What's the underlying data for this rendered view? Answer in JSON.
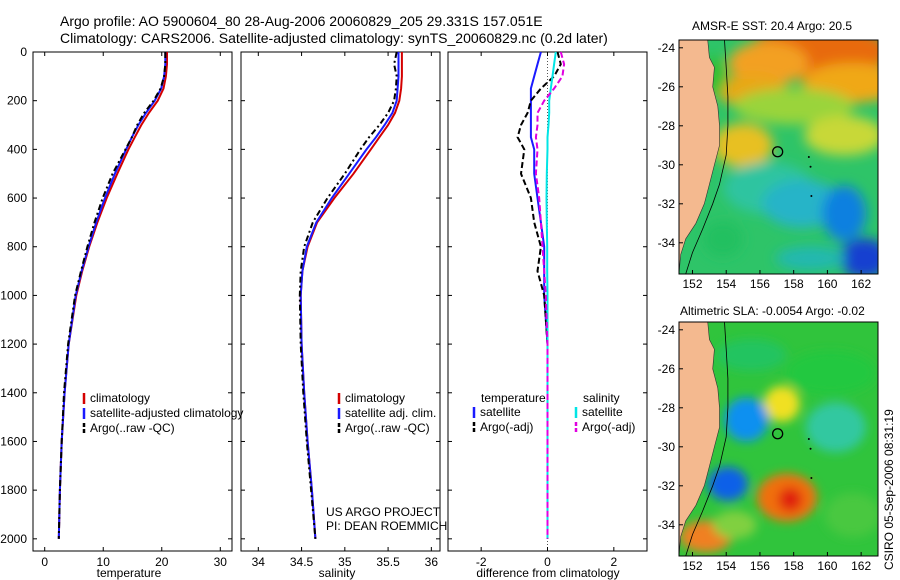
{
  "title": {
    "line1": "Argo profile: AO 5900604_80 28-Aug-2006 20060829_205 29.331S 157.051E",
    "line2": "Climatology: CARS2006. Satellite-adjusted climatology: synTS_20060829.nc (0.2d later)"
  },
  "footer": {
    "project": "US ARGO PROJECT",
    "pi": "PI: DEAN ROEMMICH",
    "stamp": "CSIRO 05-Sep-2006 08:31:19"
  },
  "colors": {
    "climatology": "#d40000",
    "satellite": "#1a1aff",
    "argo": "#000000",
    "salinity_sat": "#00e5e5",
    "salinity_argo": "#e000e0",
    "land": "#f4b98f"
  },
  "chart_data": [
    {
      "id": "temperature",
      "type": "line",
      "xlabel": "temperature",
      "xlim": [
        -2,
        32
      ],
      "xticks": [
        0,
        10,
        20,
        30
      ],
      "ylim": [
        2050,
        0
      ],
      "yticks": [
        0,
        200,
        400,
        600,
        800,
        1000,
        1200,
        1400,
        1600,
        1800,
        2000
      ],
      "legend": [
        "climatology",
        "satellite-adjusted climatology",
        "Argo(..raw -QC)"
      ],
      "depth": [
        0,
        50,
        100,
        150,
        200,
        250,
        300,
        350,
        400,
        500,
        600,
        700,
        800,
        900,
        1000,
        1200,
        1400,
        1600,
        1800,
        2000
      ],
      "series": [
        {
          "name": "climatology",
          "color": "#d40000",
          "dash": "",
          "values": [
            20.9,
            20.9,
            20.7,
            20.3,
            19.3,
            17.8,
            16.5,
            15.4,
            14.3,
            12.4,
            10.6,
            9.0,
            7.6,
            6.4,
            5.4,
            4.1,
            3.4,
            2.9,
            2.6,
            2.4
          ]
        },
        {
          "name": "satellite-adjusted climatology",
          "color": "#1a1aff",
          "dash": "",
          "values": [
            20.6,
            20.6,
            20.4,
            19.9,
            18.8,
            17.3,
            16.0,
            14.9,
            13.9,
            12.0,
            10.3,
            8.8,
            7.5,
            6.3,
            5.3,
            4.1,
            3.4,
            2.9,
            2.6,
            2.4
          ]
        },
        {
          "name": "Argo(..raw -QC)",
          "color": "#000000",
          "dash": "6 3 2 3",
          "values": [
            20.6,
            20.6,
            20.4,
            19.8,
            18.6,
            17.0,
            15.8,
            14.9,
            13.8,
            11.6,
            9.9,
            8.5,
            7.3,
            6.2,
            5.2,
            4.0,
            3.3,
            2.9,
            2.6,
            2.4
          ]
        }
      ]
    },
    {
      "id": "salinity",
      "type": "line",
      "xlabel": "salinity",
      "xlim": [
        33.8,
        36.1
      ],
      "xticks": [
        34,
        34.5,
        35,
        35.5,
        36
      ],
      "xtick_labels": [
        "34",
        "34.5",
        "35",
        "35.5",
        "36"
      ],
      "ylim": [
        2050,
        0
      ],
      "legend": [
        "climatology",
        "satellite adj. clim.",
        "Argo(..raw -QC)"
      ],
      "depth": [
        0,
        50,
        100,
        150,
        200,
        250,
        300,
        350,
        400,
        500,
        600,
        700,
        800,
        900,
        1000,
        1200,
        1400,
        1600,
        1800,
        2000
      ],
      "series": [
        {
          "name": "climatology",
          "color": "#d40000",
          "dash": "",
          "values": [
            35.66,
            35.66,
            35.66,
            35.65,
            35.63,
            35.58,
            35.5,
            35.4,
            35.3,
            35.1,
            34.88,
            34.68,
            34.57,
            34.51,
            34.49,
            34.5,
            34.53,
            34.57,
            34.62,
            34.66
          ]
        },
        {
          "name": "satellite adj. clim.",
          "color": "#1a1aff",
          "dash": "",
          "values": [
            35.62,
            35.62,
            35.62,
            35.61,
            35.6,
            35.55,
            35.46,
            35.36,
            35.25,
            35.05,
            34.85,
            34.67,
            34.56,
            34.51,
            34.49,
            34.5,
            34.53,
            34.57,
            34.62,
            34.66
          ]
        },
        {
          "name": "Argo(..raw -QC)",
          "color": "#000000",
          "dash": "6 3 2 3",
          "values": [
            35.6,
            35.57,
            35.6,
            35.59,
            35.57,
            35.5,
            35.4,
            35.28,
            35.18,
            35.0,
            34.8,
            34.63,
            34.53,
            34.49,
            34.48,
            34.49,
            34.52,
            34.56,
            34.61,
            34.66
          ]
        }
      ]
    },
    {
      "id": "difference",
      "type": "line",
      "xlabel": "difference from climatology",
      "xlim": [
        -3,
        3
      ],
      "xticks": [
        -2,
        0,
        2
      ],
      "ylim": [
        2050,
        0
      ],
      "legend_headers": [
        "temperature",
        "salinity"
      ],
      "legend": [
        "satellite",
        "Argo(-adj)",
        "satellite",
        "Argo(-adj)"
      ],
      "depth": [
        0,
        50,
        100,
        150,
        200,
        250,
        300,
        350,
        400,
        500,
        600,
        700,
        800,
        900,
        1000,
        1200,
        1400,
        1600,
        1800,
        2000
      ],
      "series": [
        {
          "name": "temperature satellite",
          "color": "#1a1aff",
          "dash": "",
          "values": [
            -0.2,
            -0.3,
            -0.4,
            -0.5,
            -0.5,
            -0.5,
            -0.5,
            -0.5,
            -0.4,
            -0.4,
            -0.3,
            -0.2,
            -0.1,
            -0.1,
            -0.1,
            0.0,
            0.0,
            0.0,
            0.0,
            0.0
          ]
        },
        {
          "name": "temperature Argo(-adj)",
          "color": "#000000",
          "dash": "6 3",
          "values": [
            0.3,
            0.4,
            0.2,
            -0.2,
            -0.5,
            -0.6,
            -0.8,
            -0.9,
            -0.7,
            -0.8,
            -0.5,
            -0.4,
            -0.2,
            -0.3,
            -0.1,
            0.0,
            0.0,
            0.0,
            0.0,
            0.0
          ]
        },
        {
          "name": "salinity satellite",
          "color": "#00e5e5",
          "dash": "",
          "values": [
            0.25,
            0.2,
            0.15,
            0.1,
            0.05,
            0.05,
            0.03,
            0.0,
            0.0,
            -0.02,
            -0.03,
            -0.02,
            -0.01,
            -0.01,
            0.0,
            0.0,
            0.0,
            0.0,
            0.0,
            0.0
          ]
        },
        {
          "name": "salinity Argo(-adj)",
          "color": "#e000e0",
          "dash": "6 3",
          "values": [
            0.4,
            0.5,
            0.45,
            0.2,
            -0.1,
            -0.3,
            -0.3,
            -0.35,
            -0.3,
            -0.35,
            -0.25,
            -0.2,
            -0.15,
            -0.1,
            -0.05,
            0.0,
            0.0,
            0.0,
            0.0,
            0.0
          ]
        }
      ]
    },
    {
      "id": "sst_map",
      "type": "heatmap",
      "title": "AMSR-E SST: 20.4 Argo: 20.5",
      "xlim": [
        151.2,
        163
      ],
      "ylim": [
        -35.6,
        -23.6
      ],
      "xticks": [
        152,
        154,
        156,
        158,
        160,
        162
      ],
      "yticks": [
        -24,
        -26,
        -28,
        -30,
        -32,
        -34
      ],
      "float_position": {
        "lon": 157.05,
        "lat": -29.33
      }
    },
    {
      "id": "sla_map",
      "type": "heatmap",
      "title": "Altimetric SLA: -0.0054 Argo: -0.02",
      "xlim": [
        151.2,
        163
      ],
      "ylim": [
        -35.6,
        -23.6
      ],
      "xticks": [
        152,
        154,
        156,
        158,
        160,
        162
      ],
      "yticks": [
        -24,
        -26,
        -28,
        -30,
        -32,
        -34
      ],
      "float_position": {
        "lon": 157.05,
        "lat": -29.33
      }
    }
  ]
}
